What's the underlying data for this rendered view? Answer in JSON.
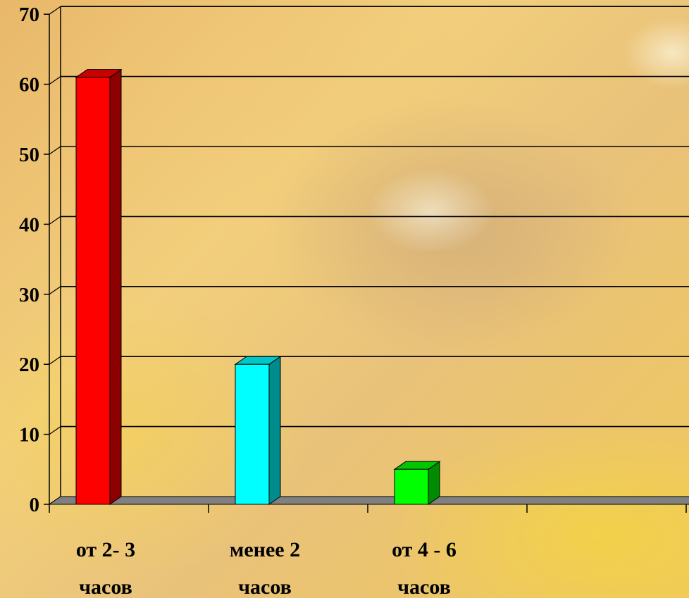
{
  "chart_data": {
    "type": "bar",
    "style": "3d-column",
    "categories": [
      [
        "от 2- 3",
        "часов"
      ],
      [
        "менее 2",
        "часов"
      ],
      [
        "от 4 - 6",
        "часов"
      ],
      [
        "",
        ""
      ]
    ],
    "values": [
      61,
      20,
      5,
      null
    ],
    "bar_colors": [
      "#ff0000",
      "#00ffff",
      "#00ff00"
    ],
    "yticks": [
      0,
      10,
      20,
      30,
      40,
      50,
      60,
      70
    ],
    "ylim": [
      0,
      70
    ],
    "grid": true,
    "legend": "none",
    "title": "",
    "xlabel": "",
    "ylabel": ""
  }
}
